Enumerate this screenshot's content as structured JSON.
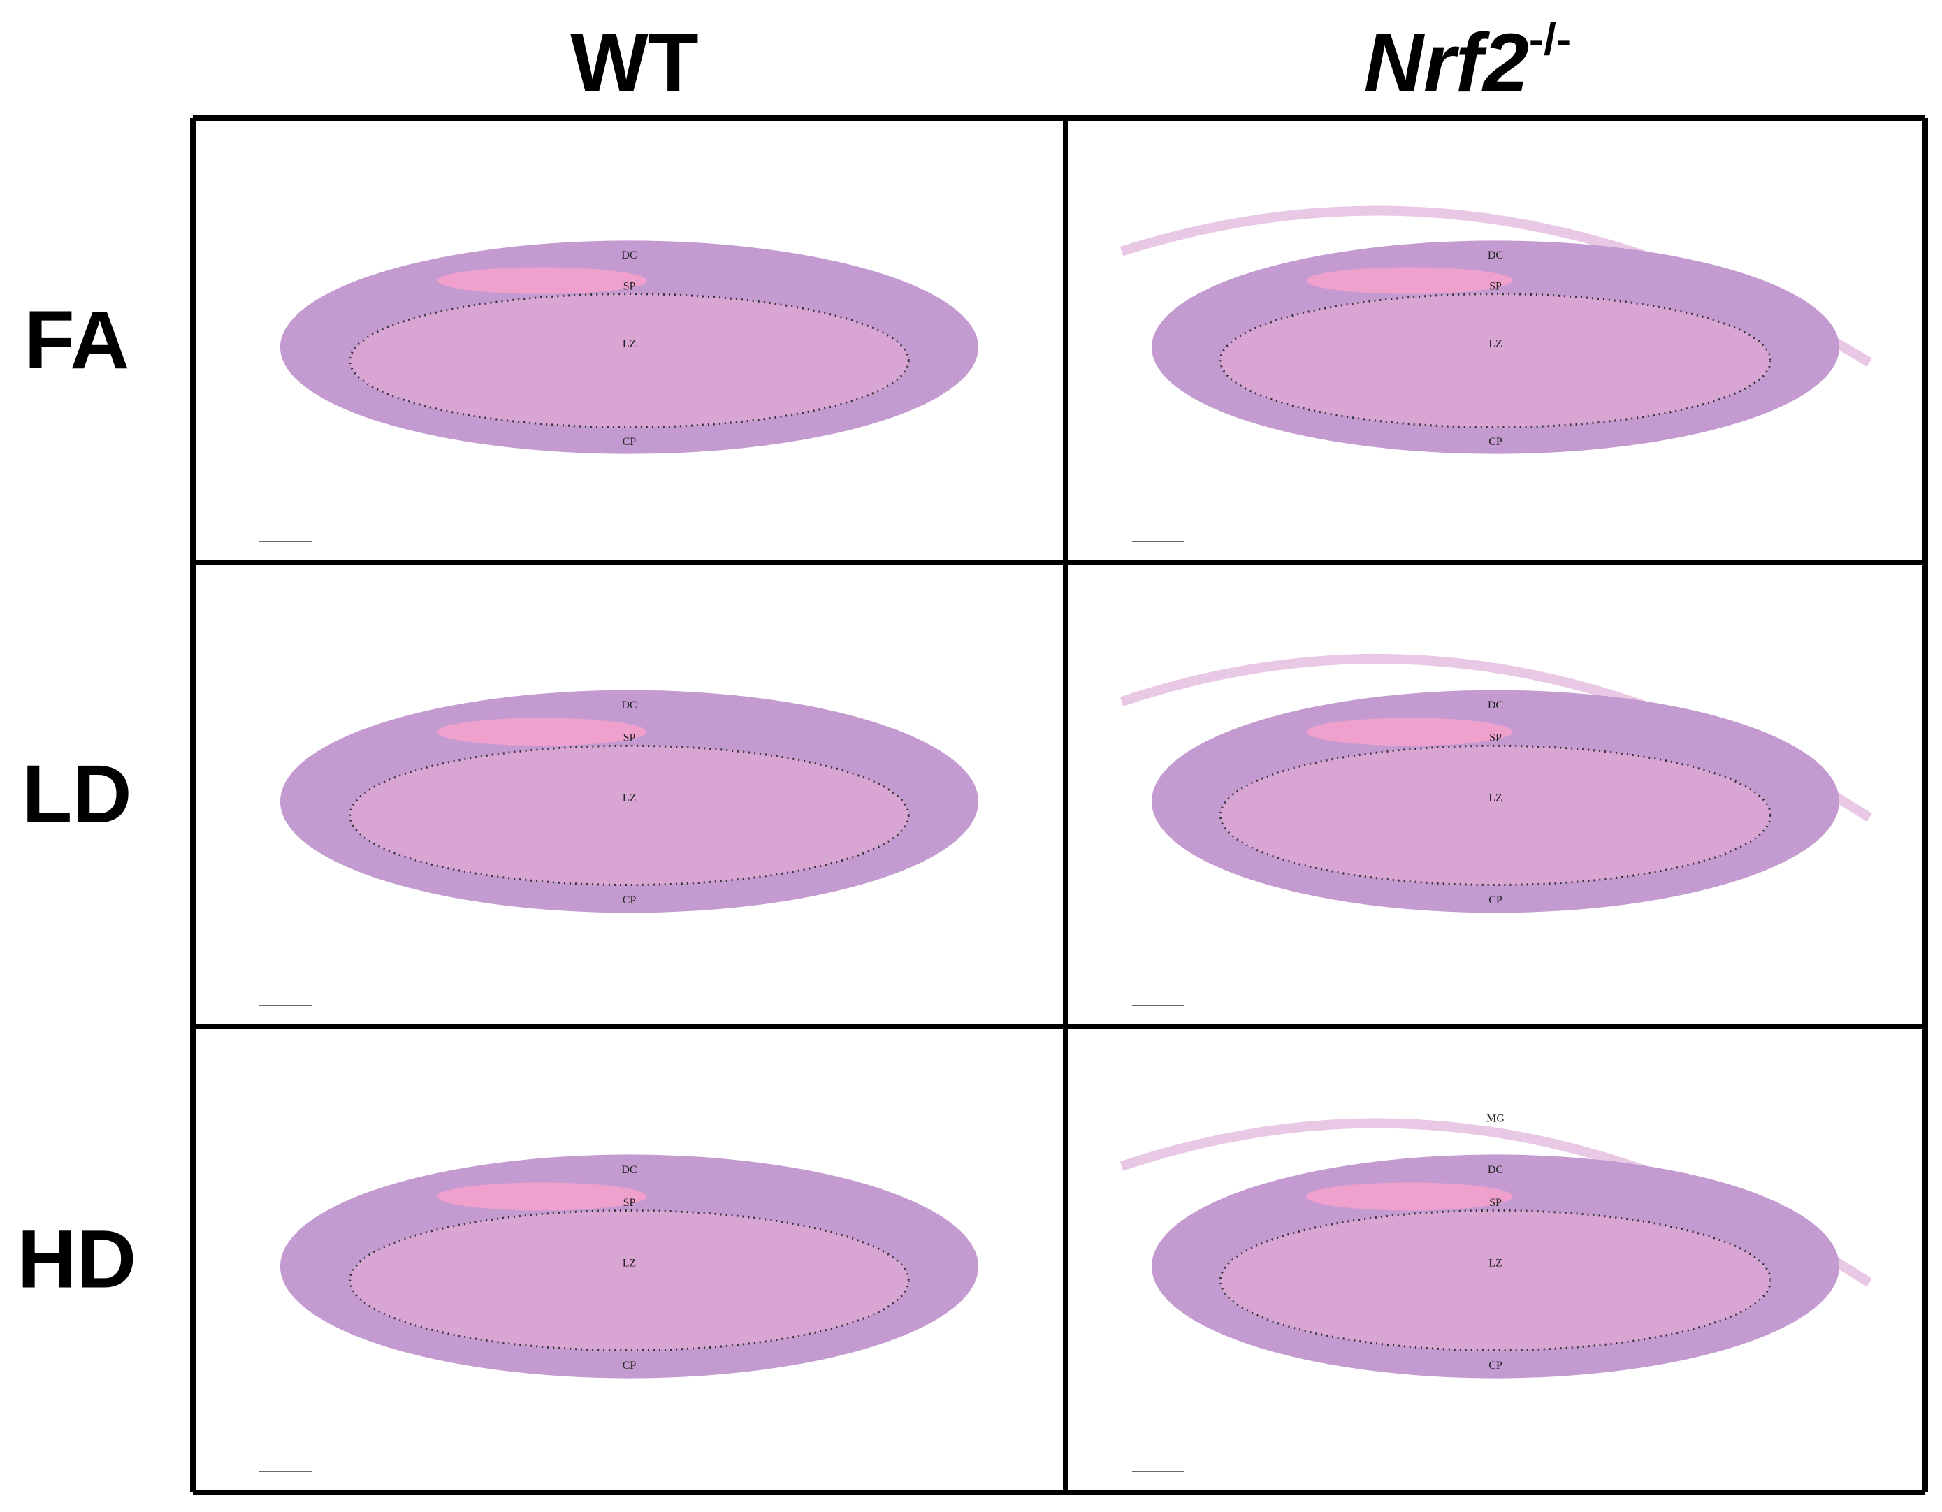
{
  "columns": [
    {
      "label": "WT"
    },
    {
      "label": "Nrf2",
      "superscript": "-/-"
    }
  ],
  "rows": [
    {
      "label": "FA",
      "panels": [
        {
          "annotations": [
            "DC",
            "SP",
            "LZ",
            "CP"
          ]
        },
        {
          "annotations": [
            "DC",
            "SP",
            "LZ",
            "CP"
          ]
        }
      ]
    },
    {
      "label": "LD",
      "panels": [
        {
          "annotations": [
            "DC",
            "SP",
            "LZ",
            "CP"
          ]
        },
        {
          "annotations": [
            "DC",
            "SP",
            "LZ",
            "CP"
          ]
        }
      ]
    },
    {
      "label": "HD",
      "panels": [
        {
          "annotations": [
            "DC",
            "SP",
            "LZ",
            "CP"
          ]
        },
        {
          "annotations": [
            "MG",
            "DC",
            "SP",
            "LZ",
            "CP"
          ]
        }
      ]
    }
  ]
}
